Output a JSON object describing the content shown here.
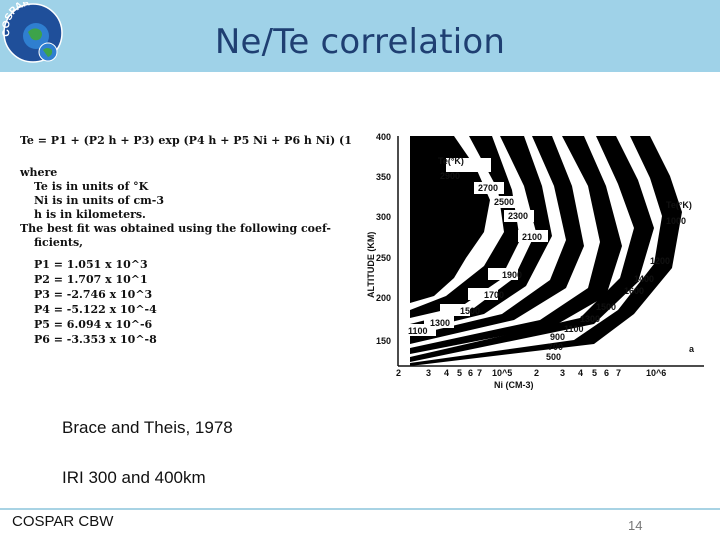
{
  "slide": {
    "title": "Ne/Te correlation",
    "captions": [
      "Brace and Theis, 1978",
      "IRI 300 and 400km"
    ],
    "footer_left": "COSPAR CBW",
    "page_number": "14",
    "logo_text": "COSPAR"
  },
  "figure": {
    "equation": "Te = P1 + (P2 h + P3) exp (P4 h + P5 Ni + P6 h Ni) (1",
    "where_lines": [
      "where",
      "Te is in units of °K",
      "Ni is in units of cm-3",
      "h is in kilometers.",
      "The best fit was obtained using the following coef-",
      "ficients,"
    ],
    "coefficients": [
      "P1 = 1.051 x 10^3",
      "P2 = 1.707 x 10^1",
      "P3 = -2.746 x 10^3",
      "P4 = -5.122 x 10^-4",
      "P5 = 6.094 x 10^-6",
      "P6 = -3.353 x 10^-8"
    ],
    "chart": {
      "y_axis_label": "ALTITUDE (KM)",
      "x_axis_label": "Ni (CM-3)",
      "y_ticks": [
        "400",
        "350",
        "300",
        "250",
        "200",
        "150"
      ],
      "x_ticks": [
        "2",
        "3",
        "4",
        "5",
        "6",
        "7",
        "10^5",
        "2",
        "3",
        "4",
        "5",
        "6",
        "7",
        "10^6"
      ],
      "left_te_label": "Te(°K)",
      "right_te_label": "Te(°K)",
      "panel_label": "a",
      "contour_labels": [
        "2900",
        "2700",
        "2500",
        "2300",
        "2100",
        "1900",
        "1700",
        "1500",
        "1300",
        "1100",
        "1000",
        "1200",
        "1400",
        "1600",
        "1500",
        "1300",
        "1100",
        "900",
        "700",
        "500"
      ]
    }
  }
}
